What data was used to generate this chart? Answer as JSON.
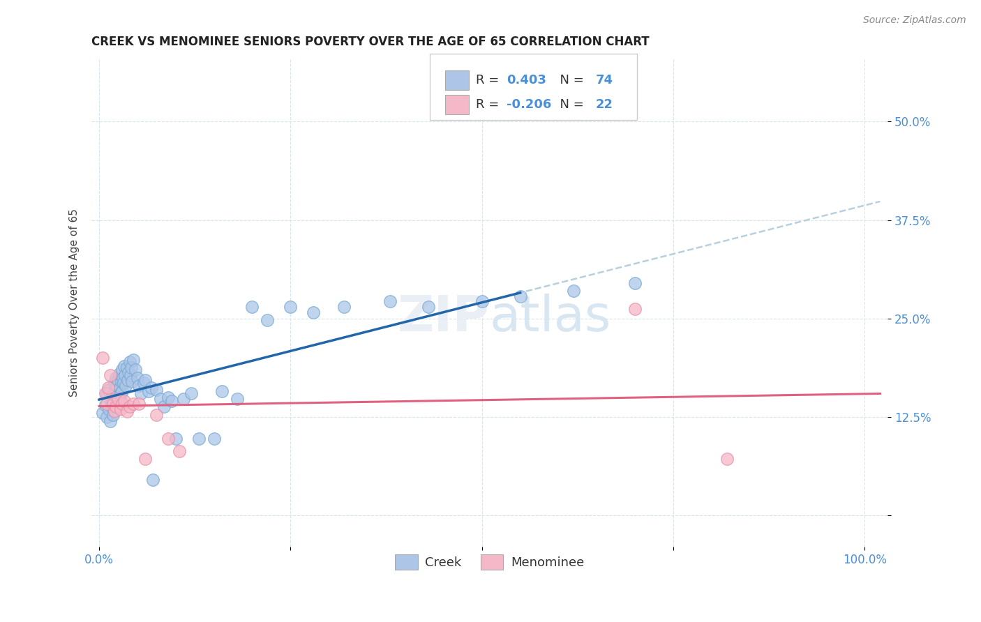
{
  "title": "CREEK VS MENOMINEE SENIORS POVERTY OVER THE AGE OF 65 CORRELATION CHART",
  "source": "Source: ZipAtlas.com",
  "ylabel": "Seniors Poverty Over the Age of 65",
  "creek_R": 0.403,
  "creek_N": 74,
  "menominee_R": -0.206,
  "menominee_N": 22,
  "xlim": [
    -0.01,
    1.03
  ],
  "ylim": [
    -0.04,
    0.58
  ],
  "xticks": [
    0.0,
    0.25,
    0.5,
    0.75,
    1.0
  ],
  "xticklabels": [
    "0.0%",
    "",
    "",
    "",
    "100.0%"
  ],
  "yticks": [
    0.0,
    0.125,
    0.25,
    0.375,
    0.5
  ],
  "yticklabels": [
    "",
    "12.5%",
    "25.0%",
    "37.5%",
    "50.0%"
  ],
  "creek_color": "#adc6e8",
  "creek_edge_color": "#7aaad4",
  "creek_line_color": "#2266aa",
  "creek_dash_color": "#b8cfe0",
  "menominee_color": "#f5b8c8",
  "menominee_edge_color": "#e890a8",
  "menominee_line_color": "#e06080",
  "background_color": "#ffffff",
  "grid_color": "#d8e4ec",
  "tick_color": "#4a90d9",
  "creek_x": [
    0.005,
    0.008,
    0.01,
    0.01,
    0.012,
    0.013,
    0.015,
    0.015,
    0.016,
    0.017,
    0.018,
    0.018,
    0.019,
    0.02,
    0.02,
    0.021,
    0.022,
    0.022,
    0.023,
    0.024,
    0.025,
    0.025,
    0.026,
    0.027,
    0.028,
    0.028,
    0.029,
    0.03,
    0.03,
    0.031,
    0.032,
    0.033,
    0.034,
    0.035,
    0.036,
    0.037,
    0.038,
    0.04,
    0.041,
    0.042,
    0.043,
    0.045,
    0.047,
    0.05,
    0.052,
    0.055,
    0.058,
    0.06,
    0.065,
    0.068,
    0.07,
    0.075,
    0.08,
    0.085,
    0.09,
    0.095,
    0.1,
    0.11,
    0.12,
    0.13,
    0.15,
    0.16,
    0.18,
    0.2,
    0.22,
    0.25,
    0.28,
    0.32,
    0.38,
    0.43,
    0.5,
    0.55,
    0.62,
    0.7
  ],
  "creek_y": [
    0.13,
    0.14,
    0.155,
    0.125,
    0.16,
    0.135,
    0.148,
    0.12,
    0.138,
    0.145,
    0.152,
    0.128,
    0.143,
    0.168,
    0.133,
    0.158,
    0.175,
    0.142,
    0.165,
    0.148,
    0.172,
    0.138,
    0.18,
    0.162,
    0.155,
    0.145,
    0.17,
    0.185,
    0.158,
    0.175,
    0.168,
    0.19,
    0.178,
    0.165,
    0.188,
    0.172,
    0.182,
    0.195,
    0.178,
    0.188,
    0.17,
    0.198,
    0.185,
    0.175,
    0.165,
    0.155,
    0.168,
    0.172,
    0.158,
    0.162,
    0.045,
    0.16,
    0.148,
    0.138,
    0.15,
    0.145,
    0.098,
    0.148,
    0.155,
    0.098,
    0.098,
    0.158,
    0.148,
    0.265,
    0.248,
    0.265,
    0.258,
    0.265,
    0.272,
    0.265,
    0.272,
    0.278,
    0.285,
    0.295
  ],
  "menominee_x": [
    0.005,
    0.008,
    0.01,
    0.012,
    0.015,
    0.018,
    0.02,
    0.022,
    0.025,
    0.028,
    0.03,
    0.033,
    0.036,
    0.04,
    0.045,
    0.052,
    0.06,
    0.075,
    0.09,
    0.105,
    0.7,
    0.82
  ],
  "menominee_y": [
    0.2,
    0.155,
    0.142,
    0.162,
    0.178,
    0.142,
    0.132,
    0.138,
    0.148,
    0.135,
    0.142,
    0.145,
    0.132,
    0.138,
    0.142,
    0.142,
    0.072,
    0.128,
    0.098,
    0.082,
    0.262,
    0.072
  ],
  "title_fontsize": 12,
  "label_fontsize": 11,
  "tick_fontsize": 12,
  "source_fontsize": 10
}
